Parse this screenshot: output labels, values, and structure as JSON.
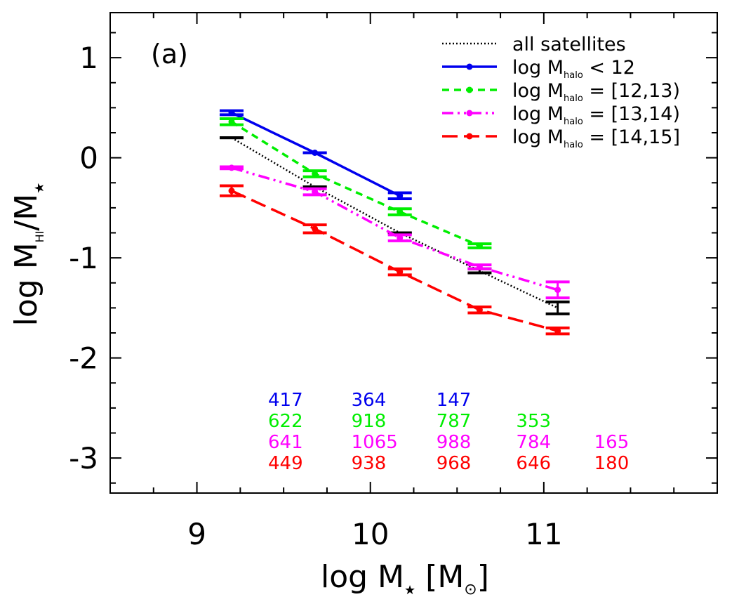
{
  "chart_data": {
    "type": "line",
    "panel_label": "(a)",
    "xlabel": "log M",
    "xlabel_sub": "★",
    "xlabel_unit": "[M",
    "xlabel_unit_sub": "⊙",
    "xlabel_unit_close": "]",
    "ylabel": "log M",
    "ylabel_sub1": "HI",
    "ylabel_mid": "/M",
    "ylabel_sub2": "★",
    "xlim": [
      8.5,
      12.0
    ],
    "ylim": [
      -3.35,
      1.45
    ],
    "xticks": [
      9,
      10,
      11
    ],
    "xtick_labels": [
      "9",
      "10",
      "11"
    ],
    "yticks": [
      1,
      0,
      -1,
      -2,
      -3
    ],
    "ytick_labels": [
      "1",
      "0",
      "-1",
      "-2",
      "-3"
    ],
    "grid": false,
    "legend_position": "top-right",
    "series": [
      {
        "name": "all satellites",
        "legend_prefix": "all satellites",
        "legend_sub": "",
        "legend_suffix": "",
        "color": "#000000",
        "style": "dotted",
        "x": [
          9.2,
          9.68,
          10.17,
          10.63,
          11.08
        ],
        "y": [
          0.2,
          -0.29,
          -0.75,
          -1.13,
          -1.5
        ],
        "err": [
          0.0,
          0.0,
          0.0,
          0.02,
          0.06
        ],
        "show_markers": false,
        "counts": []
      },
      {
        "name": "log Mhalo < 12",
        "legend_prefix": "log M",
        "legend_sub": "halo",
        "legend_suffix": " < 12",
        "color": "#0000ee",
        "style": "solid",
        "x": [
          9.2,
          9.68,
          10.17
        ],
        "y": [
          0.45,
          0.05,
          -0.38
        ],
        "err": [
          0.02,
          0.0,
          0.03
        ],
        "show_markers": true,
        "counts": [
          "417",
          "364",
          "147"
        ]
      },
      {
        "name": "log Mhalo = [12,13)",
        "legend_prefix": "log M",
        "legend_sub": "halo",
        "legend_suffix": " = [12,13)",
        "color": "#00ee00",
        "style": "dashed",
        "x": [
          9.2,
          9.68,
          10.17,
          10.63
        ],
        "y": [
          0.36,
          -0.16,
          -0.54,
          -0.88
        ],
        "err": [
          0.03,
          0.03,
          0.03,
          0.02
        ],
        "show_markers": true,
        "counts": [
          "622",
          "918",
          "787",
          "353"
        ]
      },
      {
        "name": "log Mhalo = [13,14)",
        "legend_prefix": "log M",
        "legend_sub": "halo",
        "legend_suffix": " = [13,14)",
        "color": "#ff00ff",
        "style": "dashdotdot",
        "x": [
          9.2,
          9.68,
          10.17,
          10.63,
          11.08
        ],
        "y": [
          -0.1,
          -0.34,
          -0.8,
          -1.09,
          -1.32
        ],
        "err": [
          0.01,
          0.03,
          0.03,
          0.02,
          0.08
        ],
        "show_markers": true,
        "counts": [
          "641",
          "1065",
          "988",
          "784",
          "165"
        ]
      },
      {
        "name": "log Mhalo = [14,15]",
        "legend_prefix": "log M",
        "legend_sub": "halo",
        "legend_suffix": " = [14,15]",
        "color": "#ff0000",
        "style": "longdash",
        "x": [
          9.2,
          9.68,
          10.17,
          10.63,
          11.08
        ],
        "y": [
          -0.33,
          -0.71,
          -1.14,
          -1.52,
          -1.73
        ],
        "err": [
          0.05,
          0.04,
          0.03,
          0.03,
          0.03
        ],
        "show_markers": true,
        "counts": [
          "449",
          "938",
          "968",
          "646",
          "180"
        ]
      }
    ],
    "count_columns_x": [
      9.2,
      9.68,
      10.17,
      10.63,
      11.08
    ]
  }
}
